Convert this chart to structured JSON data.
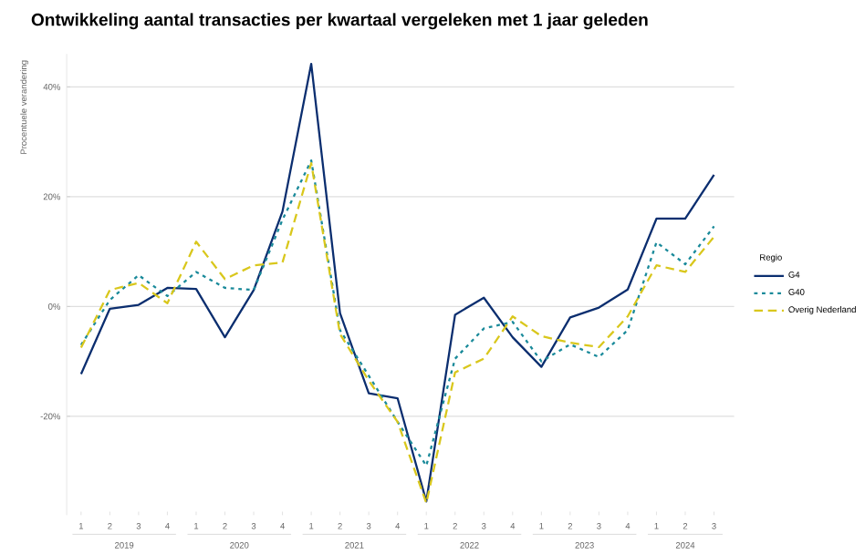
{
  "chart_data": {
    "type": "line",
    "title": "Ontwikkeling aantal transacties per kwartaal vergeleken met 1 jaar geleden",
    "ylabel": "Procentuele verandering",
    "legend_title": "Regio",
    "categories": [
      "1",
      "2",
      "3",
      "4",
      "1",
      "2",
      "3",
      "4",
      "1",
      "2",
      "3",
      "4",
      "1",
      "2",
      "3",
      "4",
      "1",
      "2",
      "3",
      "4",
      "1",
      "2",
      "3"
    ],
    "annotations": [
      "2019",
      "2020",
      "2021",
      "2022",
      "2023",
      "2024"
    ],
    "series": [
      {
        "name": "G4",
        "color": "#0b2e6f",
        "line_style": "solid",
        "values": [
          -12.3,
          -0.4,
          0.3,
          3.4,
          3.2,
          -5.6,
          3,
          17.3,
          44.2,
          -1.2,
          -15.8,
          -16.7,
          -35.5,
          -1.5,
          1.6,
          -5.6,
          -11,
          -2,
          -0.2,
          3.1,
          16,
          16,
          24
        ]
      },
      {
        "name": "G40",
        "color": "#1a8a9a",
        "line_style": "dotted",
        "values": [
          -7,
          1.2,
          5.7,
          1.9,
          6.3,
          3.4,
          3,
          15.8,
          26.6,
          -4.3,
          -12.6,
          -21,
          -29,
          -9.5,
          -4,
          -2.8,
          -10,
          -6.9,
          -9.2,
          -4.3,
          11.7,
          7.7,
          14.6
        ]
      },
      {
        "name": "Overig Nederland",
        "color": "#d9c71c",
        "line_style": "dashed",
        "values": [
          -7.5,
          3,
          4.3,
          0.6,
          11.8,
          5,
          7.5,
          8,
          26.1,
          -5,
          -13.5,
          -21,
          -35.8,
          -12,
          -9.5,
          -1.8,
          -5.4,
          -6.6,
          -7.4,
          -1.8,
          7.5,
          6.3,
          12.7
        ]
      }
    ],
    "ylim": [
      -38,
      46
    ],
    "yticks": [
      {
        "value": -20,
        "label": "-20%"
      },
      {
        "value": 0,
        "label": "0%"
      },
      {
        "value": 20,
        "label": "20%"
      },
      {
        "value": 40,
        "label": "40%"
      }
    ],
    "grid": "y",
    "legend": "right"
  }
}
